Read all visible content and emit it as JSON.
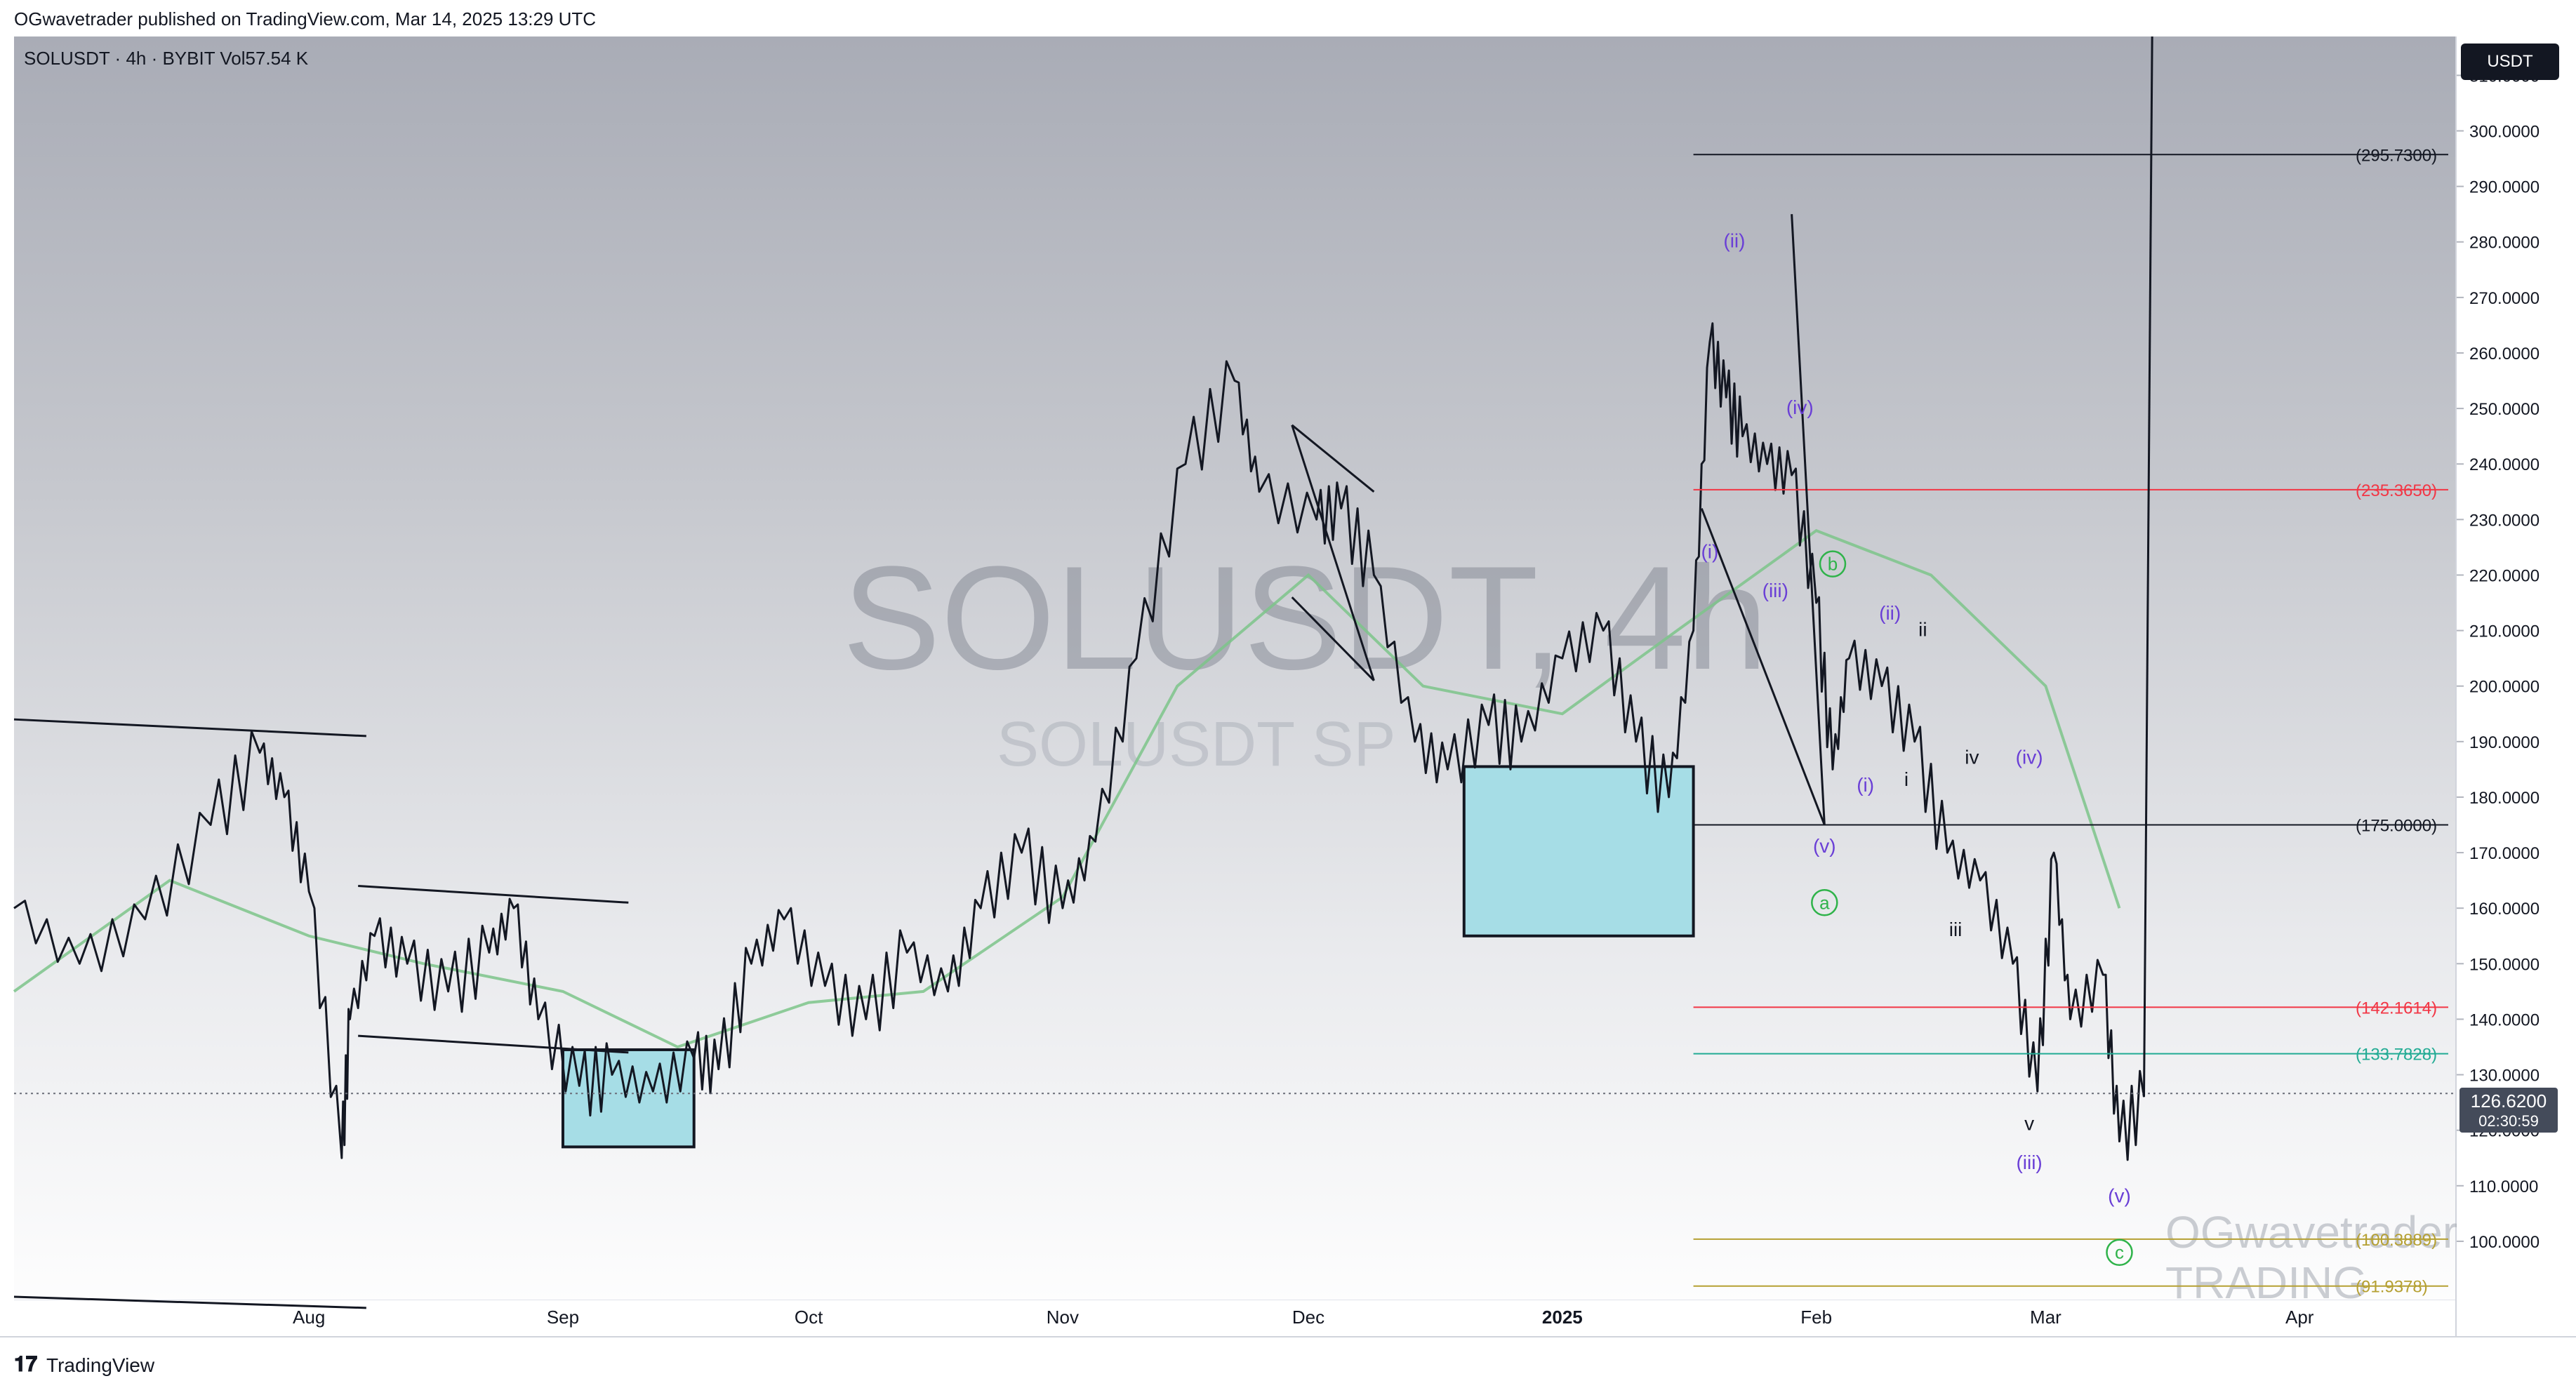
{
  "header": {
    "publisher": "OGwavetrader published on TradingView.com, Mar 14, 2025 13:29 UTC"
  },
  "symbol_info": "SOLUSDT · 4h · BYBIT  Vol57.54 K",
  "currency_badge": "USDT",
  "current_price": {
    "price": "126.6200",
    "countdown": "02:30:59"
  },
  "watermark": {
    "main": "SOLUSDT, 4h",
    "sub": "SOLUSDT SP"
  },
  "og_watermark": {
    "line1": "OGwavetrader",
    "line2": "TRADING"
  },
  "footer": {
    "logo_text": "TradingView"
  },
  "colors": {
    "candle": "#131722",
    "fib_red": "#f23645",
    "fib_green": "#22ab94",
    "fib_olive": "#b5a032",
    "wave_purple": "#6a3fd6",
    "wave_green": "#2fb34a",
    "box_fill": "#a6dde6",
    "ma_green": "#7cc48a"
  },
  "chart_data": {
    "type": "line",
    "title": "SOLUSDT · 4h · BYBIT",
    "xlabel": "",
    "ylabel": "",
    "x_ticks": [
      "Aug",
      "Sep",
      "Oct",
      "Nov",
      "Dec",
      "2025",
      "Feb",
      "Mar",
      "Apr"
    ],
    "x_tick_dates": [
      "2024-08-01",
      "2024-09-01",
      "2024-10-01",
      "2024-11-01",
      "2024-12-01",
      "2025-01-01",
      "2025-02-01",
      "2025-03-01",
      "2025-04-01"
    ],
    "xlim": [
      "2024-06-26",
      "2025-04-20"
    ],
    "ylim": [
      89.5,
      317
    ],
    "y_ticks": [
      "100.0000",
      "110.0000",
      "120.0000",
      "130.0000",
      "140.0000",
      "150.0000",
      "160.0000",
      "170.0000",
      "180.0000",
      "190.0000",
      "200.0000",
      "210.0000",
      "220.0000",
      "230.0000",
      "240.0000",
      "250.0000",
      "260.0000",
      "270.0000",
      "280.0000",
      "290.0000",
      "300.0000",
      "310.0000"
    ],
    "series": [
      {
        "values_approx": true,
        "x": [
          "2024-06-26",
          "2024-07-04",
          "2024-07-12",
          "2024-07-20",
          "2024-07-26",
          "2024-07-29",
          "2024-08-01",
          "2024-08-05",
          "2024-08-06",
          "2024-08-09",
          "2024-08-13",
          "2024-08-18",
          "2024-08-23",
          "2024-08-26",
          "2024-08-29",
          "2024-09-03",
          "2024-09-07",
          "2024-09-12",
          "2024-09-17",
          "2024-09-20",
          "2024-09-24",
          "2024-09-28",
          "2024-10-03",
          "2024-10-08",
          "2024-10-13",
          "2024-10-18",
          "2024-10-22",
          "2024-10-27",
          "2024-11-01",
          "2024-11-05",
          "2024-11-10",
          "2024-11-16",
          "2024-11-22",
          "2024-11-25",
          "2024-12-02",
          "2024-12-05",
          "2024-12-09",
          "2024-12-14",
          "2024-12-18",
          "2024-12-23",
          "2024-12-27",
          "2025-01-01",
          "2025-01-06",
          "2025-01-10",
          "2025-01-14",
          "2025-01-17",
          "2025-01-19",
          "2025-01-21",
          "2025-01-23",
          "2025-01-26",
          "2025-01-29",
          "2025-02-01",
          "2025-02-03",
          "2025-02-05",
          "2025-02-09",
          "2025-02-13",
          "2025-02-17",
          "2025-02-21",
          "2025-02-25",
          "2025-02-28",
          "2025-03-02",
          "2025-03-04",
          "2025-03-08",
          "2025-03-10",
          "2025-03-13"
        ],
        "values": [
          160,
          150,
          158,
          175,
          188,
          180,
          163,
          115,
          140,
          155,
          150,
          145,
          152,
          160,
          140,
          128,
          130,
          127,
          133,
          131,
          150,
          158,
          146,
          140,
          152,
          145,
          160,
          170,
          160,
          172,
          205,
          240,
          255,
          235,
          230,
          232,
          220,
          190,
          185,
          193,
          190,
          205,
          210,
          190,
          180,
          210,
          262,
          252,
          245,
          240,
          238,
          215,
          185,
          205,
          200,
          190,
          170,
          165,
          150,
          127,
          170,
          140,
          148,
          118,
          126
        ]
      }
    ],
    "ma_series": [
      {
        "values_approx": true,
        "color": "green",
        "x": [
          "2024-06-26",
          "2024-07-15",
          "2024-08-01",
          "2024-08-15",
          "2024-09-01",
          "2024-09-15",
          "2024-10-01",
          "2024-10-15",
          "2024-11-01",
          "2024-11-15",
          "2024-12-01",
          "2024-12-15",
          "2025-01-01",
          "2025-01-15",
          "2025-02-01",
          "2025-02-15",
          "2025-03-01",
          "2025-03-10"
        ],
        "values": [
          145,
          165,
          155,
          150,
          145,
          135,
          143,
          145,
          162,
          200,
          220,
          200,
          195,
          210,
          228,
          220,
          200,
          160
        ]
      }
    ],
    "horizontal_levels": [
      {
        "label": "(295.7300)",
        "value": 295.73,
        "color": "#131722"
      },
      {
        "label": "(235.3650)",
        "value": 235.365,
        "color": "#f23645"
      },
      {
        "label": "(175.0000)",
        "value": 175.0,
        "color": "#131722"
      },
      {
        "label": "(142.1614)",
        "value": 142.1614,
        "color": "#f23645"
      },
      {
        "label": "(133.7828)",
        "value": 133.7828,
        "color": "#22ab94"
      },
      {
        "label": "(100.3889)",
        "value": 100.3889,
        "color": "#b5a032"
      },
      {
        "label": "(91.9378)",
        "value": 91.9378,
        "color": "#b5a032"
      }
    ],
    "last_price": 126.62,
    "zones": [
      {
        "x0": "2024-09-01",
        "x1": "2024-09-17",
        "y0": 117,
        "y1": 134.5
      },
      {
        "x0": "2024-12-20",
        "x1": "2025-01-17",
        "y0": 155,
        "y1": 185.5
      }
    ],
    "wave_labels": [
      {
        "text": "(i)",
        "x": "2025-01-19",
        "y": 223,
        "color": "purple"
      },
      {
        "text": "(ii)",
        "x": "2025-01-22",
        "y": 279,
        "color": "purple"
      },
      {
        "text": "(iii)",
        "x": "2025-01-27",
        "y": 216,
        "color": "purple"
      },
      {
        "text": "(iv)",
        "x": "2025-01-30",
        "y": 249,
        "color": "purple"
      },
      {
        "text": "(v)",
        "x": "2025-02-02",
        "y": 170,
        "color": "purple"
      },
      {
        "text": "a",
        "x": "2025-02-02",
        "y": 161,
        "color": "green-circle"
      },
      {
        "text": "b",
        "x": "2025-02-03",
        "y": 222,
        "color": "green-circle"
      },
      {
        "text": "(i)",
        "x": "2025-02-07",
        "y": 181,
        "color": "purple"
      },
      {
        "text": "(ii)",
        "x": "2025-02-10",
        "y": 212,
        "color": "purple"
      },
      {
        "text": "i",
        "x": "2025-02-12",
        "y": 182,
        "color": "black"
      },
      {
        "text": "ii",
        "x": "2025-02-14",
        "y": 209,
        "color": "black"
      },
      {
        "text": "iii",
        "x": "2025-02-18",
        "y": 155,
        "color": "black"
      },
      {
        "text": "iv",
        "x": "2025-02-20",
        "y": 186,
        "color": "black"
      },
      {
        "text": "(iv)",
        "x": "2025-02-27",
        "y": 186,
        "color": "purple"
      },
      {
        "text": "v",
        "x": "2025-02-27",
        "y": 120,
        "color": "black"
      },
      {
        "text": "(iii)",
        "x": "2025-02-27",
        "y": 113,
        "color": "purple"
      },
      {
        "text": "(v)",
        "x": "2025-03-10",
        "y": 107,
        "color": "purple"
      },
      {
        "text": "c",
        "x": "2025-03-10",
        "y": 98,
        "color": "green-circle"
      }
    ]
  }
}
